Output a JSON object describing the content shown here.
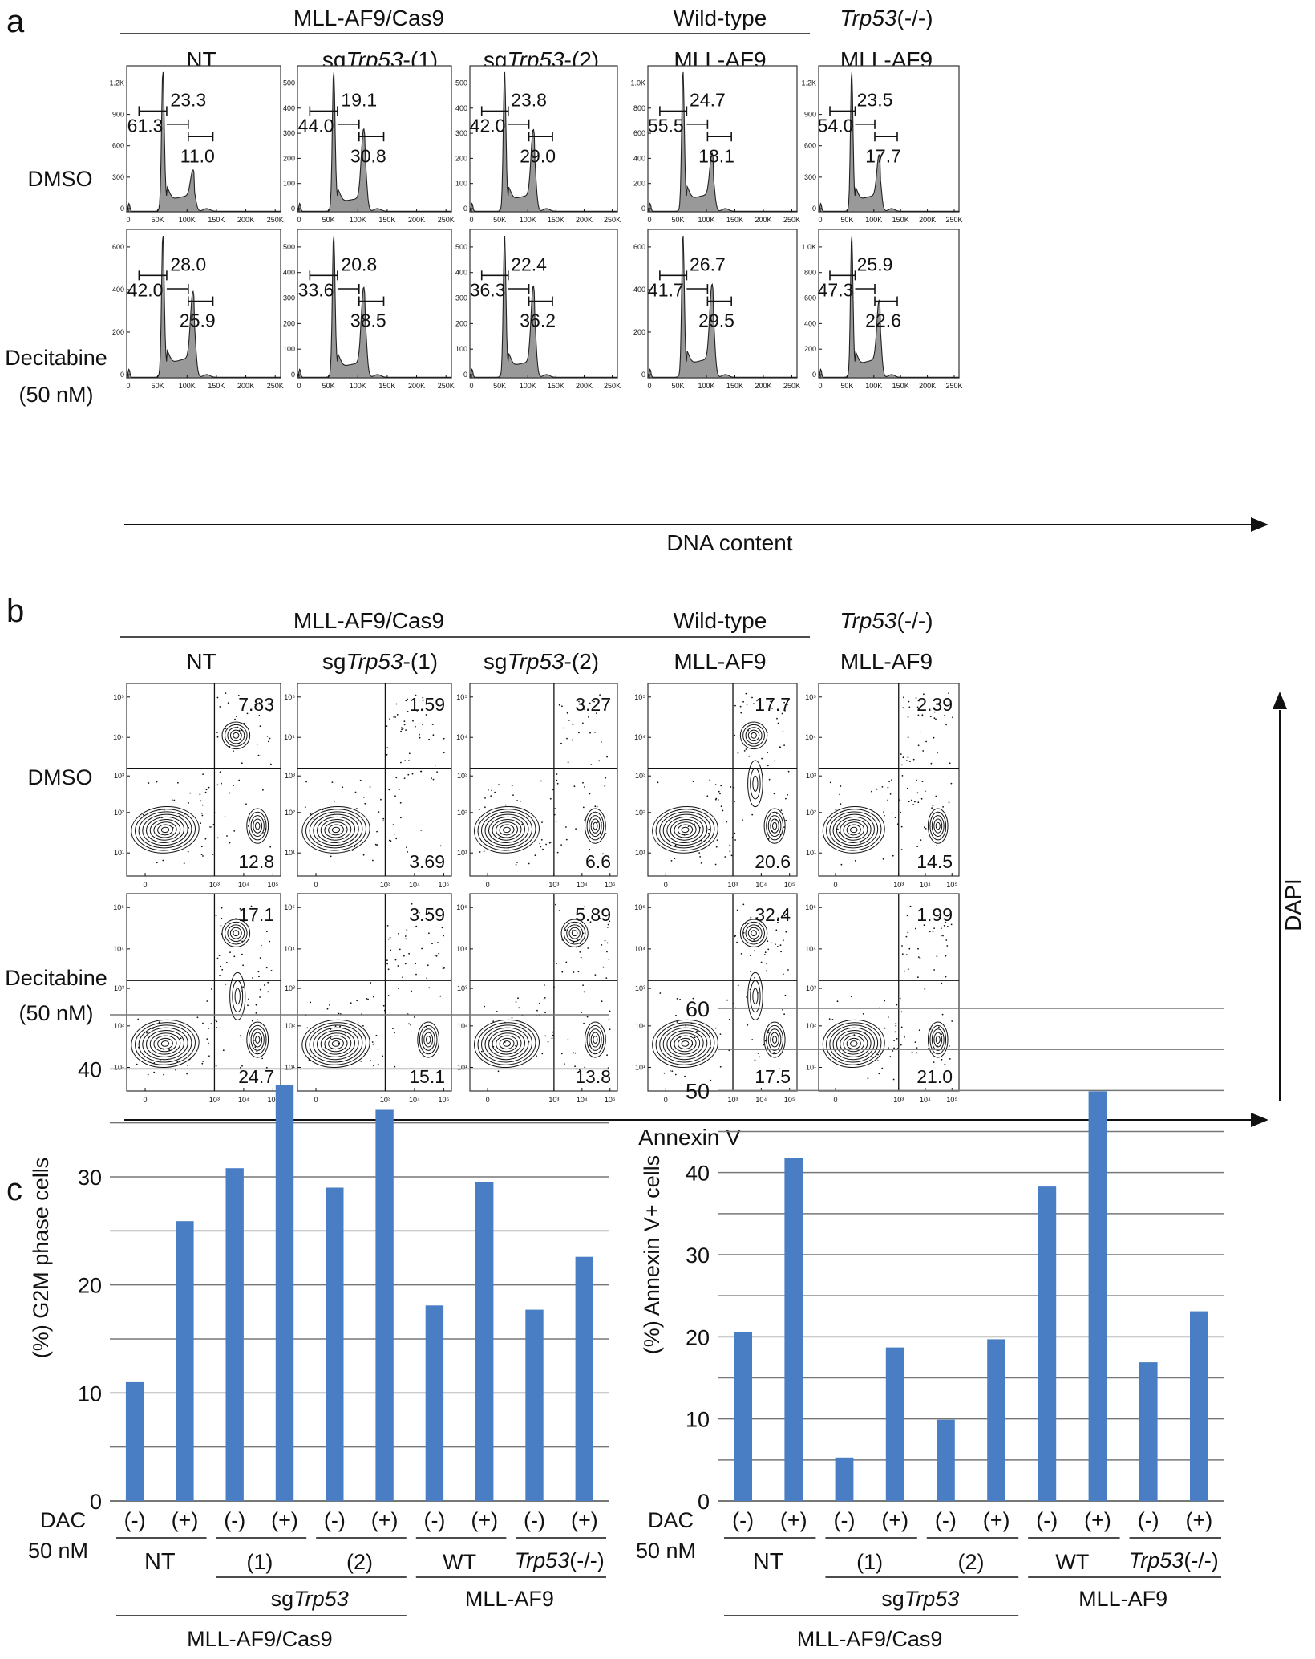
{
  "panel_a": {
    "letter": "a",
    "group_label": "MLL-AF9/Cas9",
    "columns": [
      {
        "l1": "",
        "l2pre": "NT",
        "l2it": "",
        "l2post": ""
      },
      {
        "l1": "",
        "l2pre": "sg",
        "l2it": "Trp53",
        "l2post": "-(1)"
      },
      {
        "l1": "",
        "l2pre": "sg",
        "l2it": "Trp53",
        "l2post": "-(2)"
      },
      {
        "l1": "Wild-type",
        "l1it": "",
        "l1post": "",
        "l2pre": "MLL-AF9",
        "l2it": "",
        "l2post": ""
      },
      {
        "l1": "",
        "l1it": "Trp53",
        "l1post": "(-/-)",
        "l2pre": "MLL-AF9",
        "l2it": "",
        "l2post": ""
      }
    ],
    "rows": [
      {
        "l1": "DMSO",
        "l2": ""
      },
      {
        "l1": "Decitabine",
        "l2": "(50 nM)"
      }
    ],
    "x_axis": "DNA content",
    "x_ticks": [
      "0",
      "50K",
      "100K",
      "150K",
      "200K",
      "250K"
    ],
    "histograms": [
      [
        {
          "yticks": [
            "0",
            "300",
            "600",
            "900",
            "1.2K"
          ],
          "g1": "61.3",
          "s": "23.3",
          "g2m": "11.0"
        },
        {
          "yticks": [
            "0",
            "100",
            "200",
            "300",
            "400",
            "500"
          ],
          "g1": "44.0",
          "s": "19.1",
          "g2m": "30.8"
        },
        {
          "yticks": [
            "0",
            "100",
            "200",
            "300",
            "400",
            "500"
          ],
          "g1": "42.0",
          "s": "23.8",
          "g2m": "29.0"
        },
        {
          "yticks": [
            "0",
            "200",
            "400",
            "600",
            "800",
            "1.0K"
          ],
          "g1": "55.5",
          "s": "24.7",
          "g2m": "18.1"
        },
        {
          "yticks": [
            "0",
            "300",
            "600",
            "900",
            "1.2K"
          ],
          "g1": "54.0",
          "s": "23.5",
          "g2m": "17.7"
        }
      ],
      [
        {
          "yticks": [
            "0",
            "200",
            "400",
            "600"
          ],
          "g1": "42.0",
          "s": "28.0",
          "g2m": "25.9"
        },
        {
          "yticks": [
            "0",
            "100",
            "200",
            "300",
            "400",
            "500"
          ],
          "g1": "33.6",
          "s": "20.8",
          "g2m": "38.5"
        },
        {
          "yticks": [
            "0",
            "100",
            "200",
            "300",
            "400",
            "500"
          ],
          "g1": "36.3",
          "s": "22.4",
          "g2m": "36.2"
        },
        {
          "yticks": [
            "0",
            "200",
            "400",
            "600"
          ],
          "g1": "41.7",
          "s": "26.7",
          "g2m": "29.5"
        },
        {
          "yticks": [
            "0",
            "200",
            "400",
            "600",
            "800",
            "1.0K"
          ],
          "g1": "47.3",
          "s": "25.9",
          "g2m": "22.6"
        }
      ]
    ]
  },
  "panel_b": {
    "letter": "b",
    "group_label": "MLL-AF9/Cas9",
    "x_axis": "Annexin V",
    "y_axis": "DAPI",
    "log_ticks": [
      "0",
      "10³",
      "10⁴",
      "10⁵"
    ],
    "y_log_ticks": [
      "10¹",
      "10²",
      "10³",
      "10⁴",
      "10⁵"
    ],
    "plots": [
      [
        {
          "ur": "7.83",
          "lr": "12.8"
        },
        {
          "ur": "1.59",
          "lr": "3.69"
        },
        {
          "ur": "3.27",
          "lr": "6.6"
        },
        {
          "ur": "17.7",
          "lr": "20.6"
        },
        {
          "ur": "2.39",
          "lr": "14.5"
        }
      ],
      [
        {
          "ur": "17.1",
          "lr": "24.7"
        },
        {
          "ur": "3.59",
          "lr": "15.1"
        },
        {
          "ur": "5.89",
          "lr": "13.8"
        },
        {
          "ur": "32.4",
          "lr": "17.5"
        },
        {
          "ur": "1.99",
          "lr": "21.0"
        }
      ]
    ]
  },
  "panel_c": {
    "letter": "c",
    "dac_label": "DAC",
    "dac_conc": "50 nM",
    "minus": "(-)",
    "plus": "(+)",
    "groups": {
      "nt": "NT",
      "one": "(1)",
      "two": "(2)",
      "wt": "WT",
      "trp_it": "Trp53",
      "trp_post": "(-/-)",
      "sg_pre": "sg",
      "sg_it": "Trp53",
      "mll": "MLL-AF9",
      "cas9": "MLL-AF9/Cas9"
    }
  },
  "chart_data": [
    {
      "type": "bar",
      "title": "",
      "xlabel": "",
      "ylabel": "(%) G2M phase cells",
      "ylim": [
        0,
        45
      ],
      "yticks": [
        "0",
        "10",
        "20",
        "30",
        "40"
      ],
      "categories": [
        "NT (-)",
        "NT (+)",
        "sgTrp53-(1) (-)",
        "sgTrp53-(1) (+)",
        "sgTrp53-(2) (-)",
        "sgTrp53-(2) (+)",
        "WT (-)",
        "WT (+)",
        "Trp53(-/-) (-)",
        "Trp53(-/-) (+)"
      ],
      "values": [
        11.0,
        25.9,
        30.8,
        38.5,
        29.0,
        36.2,
        18.1,
        29.5,
        17.7,
        22.6
      ],
      "color": "#4a7ec4"
    },
    {
      "type": "bar",
      "title": "",
      "xlabel": "",
      "ylabel": "(%) Annexin V+ cells",
      "ylim": [
        0,
        60
      ],
      "yticks": [
        "0",
        "10",
        "20",
        "30",
        "40",
        "50",
        "60"
      ],
      "categories": [
        "NT (-)",
        "NT (+)",
        "sgTrp53-(1) (-)",
        "sgTrp53-(1) (+)",
        "sgTrp53-(2) (-)",
        "sgTrp53-(2) (+)",
        "WT (-)",
        "WT (+)",
        "Trp53(-/-) (-)",
        "Trp53(-/-) (+)"
      ],
      "values": [
        20.6,
        41.8,
        5.3,
        18.7,
        9.9,
        19.7,
        38.3,
        49.9,
        16.9,
        23.1
      ],
      "color": "#4a7ec4"
    }
  ]
}
